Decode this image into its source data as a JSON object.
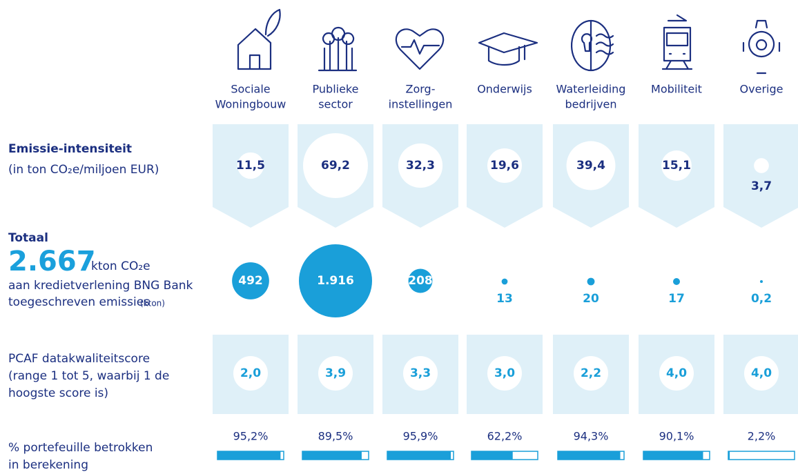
{
  "categories": [
    [
      "Sociale",
      "Woningbouw"
    ],
    [
      "Publieke",
      "sector"
    ],
    [
      "Zorg-",
      "instellingen"
    ],
    [
      "Onderwijs"
    ],
    [
      "Waterleiding",
      "bedrijven"
    ],
    [
      "Mobiliteit"
    ],
    [
      "Overige"
    ]
  ],
  "intensity": {
    "title": "Emissie-intensiteit",
    "subtitle": "(in ton CO₂e/miljoen EUR)",
    "values": [
      11.5,
      69.2,
      32.3,
      19.6,
      39.4,
      15.1,
      3.7
    ],
    "value_labels": [
      "11,5",
      "69,2",
      "32,3",
      "19,6",
      "39,4",
      "15,1",
      "3,7"
    ]
  },
  "emissions": {
    "title": "Totaal",
    "total": "2.667",
    "total_unit": "kton CO₂e",
    "line1": "aan kredietverlening BNG Bank",
    "line2": "toegeschreven emissies",
    "line2_unit": "(kton)",
    "values": [
      492,
      1916,
      208,
      13,
      20,
      17,
      0.2
    ],
    "value_labels": [
      "492",
      "1.916",
      "208",
      "13",
      "20",
      "17",
      "0,2"
    ]
  },
  "pcaf": {
    "lines": [
      "PCAF datakwaliteitscore",
      "(range 1 tot 5, waarbij 1 de",
      "hoogste score is)"
    ],
    "values": [
      2.0,
      3.9,
      3.3,
      3.0,
      2.2,
      4.0,
      4.0
    ],
    "value_labels": [
      "2,0",
      "3,9",
      "3,3",
      "3,0",
      "2,2",
      "4,0",
      "4,0"
    ]
  },
  "portfolio": {
    "lines": [
      "% portefeuille betrokken",
      "in berekening"
    ],
    "values": [
      95.2,
      89.5,
      95.9,
      62.2,
      94.3,
      90.1,
      2.2
    ],
    "value_labels": [
      "95,2%",
      "89,5%",
      "95,9%",
      "62,2%",
      "94,3%",
      "90,1%",
      "2,2%"
    ],
    "max": 100
  }
}
